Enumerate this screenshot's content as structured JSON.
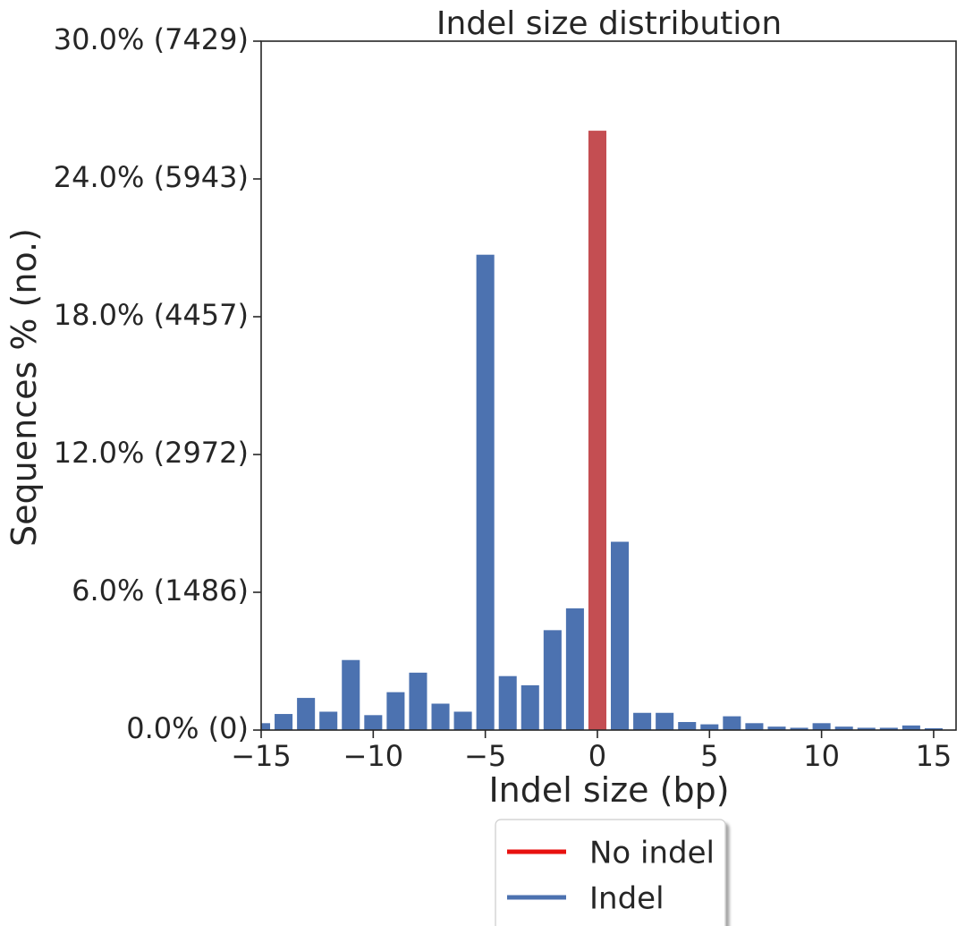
{
  "chart_data": {
    "type": "bar",
    "title": "Indel size distribution",
    "xlabel": "Indel size (bp)",
    "ylabel": "Sequences % (no.)",
    "xlim": [
      -15,
      16
    ],
    "ylim": [
      0,
      30
    ],
    "x_ticks": [
      {
        "value": -15,
        "label": "−15"
      },
      {
        "value": -10,
        "label": "−10"
      },
      {
        "value": -5,
        "label": "−5"
      },
      {
        "value": 0,
        "label": "0"
      },
      {
        "value": 5,
        "label": "5"
      },
      {
        "value": 10,
        "label": "10"
      },
      {
        "value": 15,
        "label": "15"
      }
    ],
    "y_ticks": [
      {
        "value": 0,
        "label": "0.0% (0)"
      },
      {
        "value": 6,
        "label": "6.0% (1486)"
      },
      {
        "value": 12,
        "label": "12.0% (2972)"
      },
      {
        "value": 18,
        "label": "18.0% (4457)"
      },
      {
        "value": 24,
        "label": "24.0% (5943)"
      },
      {
        "value": 30,
        "label": "30.0% (7429)"
      }
    ],
    "grid": false,
    "legend_position": "bottom-center",
    "legend": [
      {
        "label": "No indel",
        "color": "#e8110f"
      },
      {
        "label": "Indel",
        "color": "#4c72b0"
      }
    ],
    "colors": {
      "indel": "#4c72b0",
      "no_indel": "#c44e52"
    },
    "series": [
      {
        "name": "Indel",
        "points": [
          {
            "x": -15,
            "y": 0.3
          },
          {
            "x": -14,
            "y": 0.7
          },
          {
            "x": -13,
            "y": 1.4
          },
          {
            "x": -12,
            "y": 0.8
          },
          {
            "x": -11,
            "y": 3.05
          },
          {
            "x": -10,
            "y": 0.65
          },
          {
            "x": -9,
            "y": 1.65
          },
          {
            "x": -8,
            "y": 2.5
          },
          {
            "x": -7,
            "y": 1.15
          },
          {
            "x": -6,
            "y": 0.8
          },
          {
            "x": -5,
            "y": 20.7
          },
          {
            "x": -4,
            "y": 2.35
          },
          {
            "x": -3,
            "y": 1.95
          },
          {
            "x": -2,
            "y": 4.35
          },
          {
            "x": -1,
            "y": 5.3
          },
          {
            "x": 1,
            "y": 8.2
          },
          {
            "x": 2,
            "y": 0.75
          },
          {
            "x": 3,
            "y": 0.75
          },
          {
            "x": 4,
            "y": 0.35
          },
          {
            "x": 5,
            "y": 0.25
          },
          {
            "x": 6,
            "y": 0.6
          },
          {
            "x": 7,
            "y": 0.3
          },
          {
            "x": 8,
            "y": 0.15
          },
          {
            "x": 9,
            "y": 0.1
          },
          {
            "x": 10,
            "y": 0.3
          },
          {
            "x": 11,
            "y": 0.15
          },
          {
            "x": 12,
            "y": 0.1
          },
          {
            "x": 13,
            "y": 0.1
          },
          {
            "x": 14,
            "y": 0.2
          },
          {
            "x": 15,
            "y": 0.08
          }
        ]
      },
      {
        "name": "No indel",
        "points": [
          {
            "x": 0,
            "y": 26.1
          }
        ]
      }
    ]
  }
}
